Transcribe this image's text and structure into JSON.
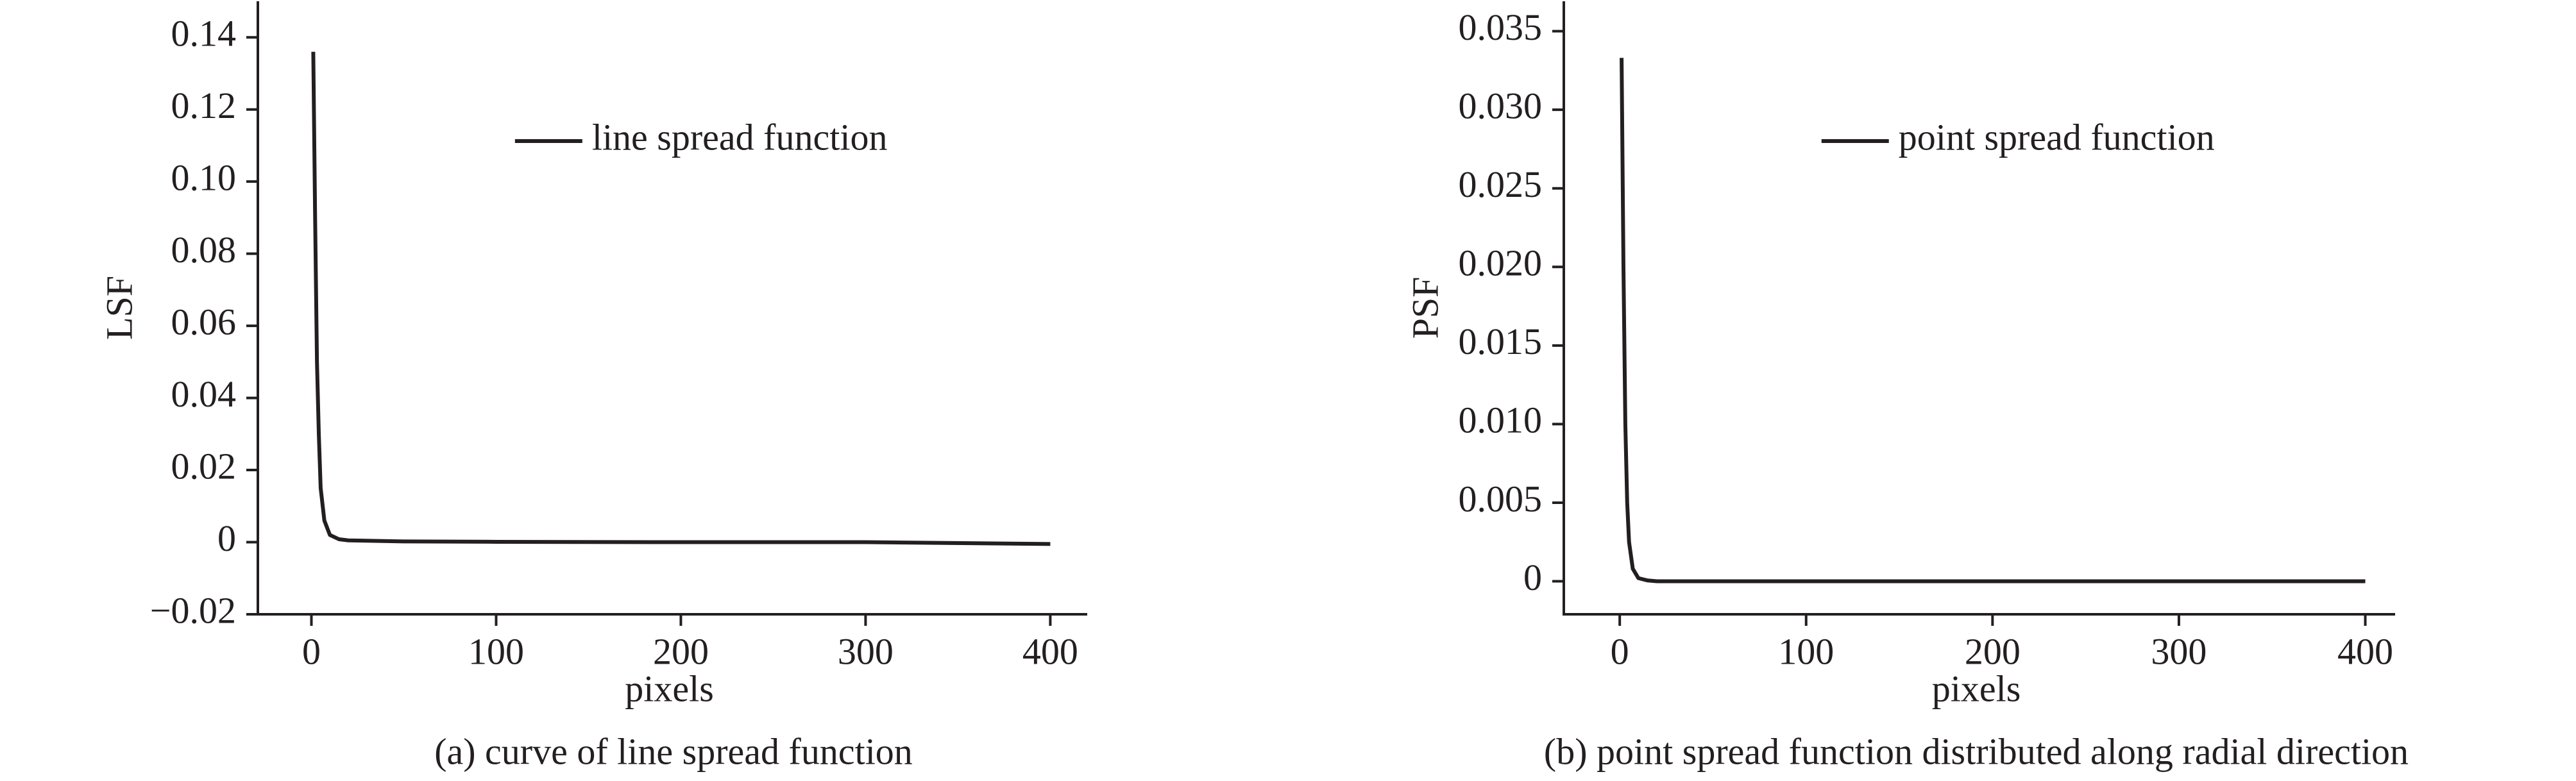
{
  "chart_data": [
    {
      "type": "line",
      "caption": "(a) curve of line spread function",
      "xlabel": "pixels",
      "ylabel": "LSF",
      "x": [
        1,
        2,
        3,
        4,
        5,
        7,
        10,
        15,
        20,
        50,
        100,
        200,
        300,
        400
      ],
      "series": [
        {
          "name": "line spread function",
          "color": "#231f20",
          "values": [
            0.136,
            0.09,
            0.05,
            0.03,
            0.015,
            0.006,
            0.002,
            0.0008,
            0.0005,
            0.0002,
            0.0001,
            0,
            0,
            -0.0005
          ]
        }
      ],
      "xlim": [
        -29,
        420
      ],
      "xticks": [
        0,
        100,
        200,
        300,
        400
      ],
      "ylim": [
        -0.02,
        0.15
      ],
      "yticks": [
        {
          "value": -0.02,
          "label": "−0.02"
        },
        0,
        0.02,
        0.04,
        0.06,
        0.08,
        {
          "value": 0.1,
          "label": "0.10"
        },
        0.12,
        0.14
      ],
      "legend": "upper center"
    },
    {
      "type": "line",
      "caption": "(b) point spread function distributed along radial direction",
      "xlabel": "pixels",
      "ylabel": "PSF",
      "x": [
        1,
        2,
        3,
        4,
        5,
        7,
        10,
        15,
        20,
        400
      ],
      "series": [
        {
          "name": "point spread function",
          "color": "#231f20",
          "values": [
            0.0333,
            0.02,
            0.01,
            0.005,
            0.0025,
            0.0008,
            0.0002,
            5e-05,
            0,
            0
          ]
        }
      ],
      "xlim": [
        -30,
        416
      ],
      "xticks": [
        0,
        100,
        200,
        300,
        400
      ],
      "ylim": [
        -0.0021,
        0.0369
      ],
      "yticks": [
        0,
        0.005,
        {
          "value": 0.01,
          "label": "0.010"
        },
        0.015,
        {
          "value": 0.02,
          "label": "0.020"
        },
        0.025,
        {
          "value": 0.03,
          "label": "0.030"
        },
        0.035
      ],
      "legend": "upper center"
    }
  ]
}
